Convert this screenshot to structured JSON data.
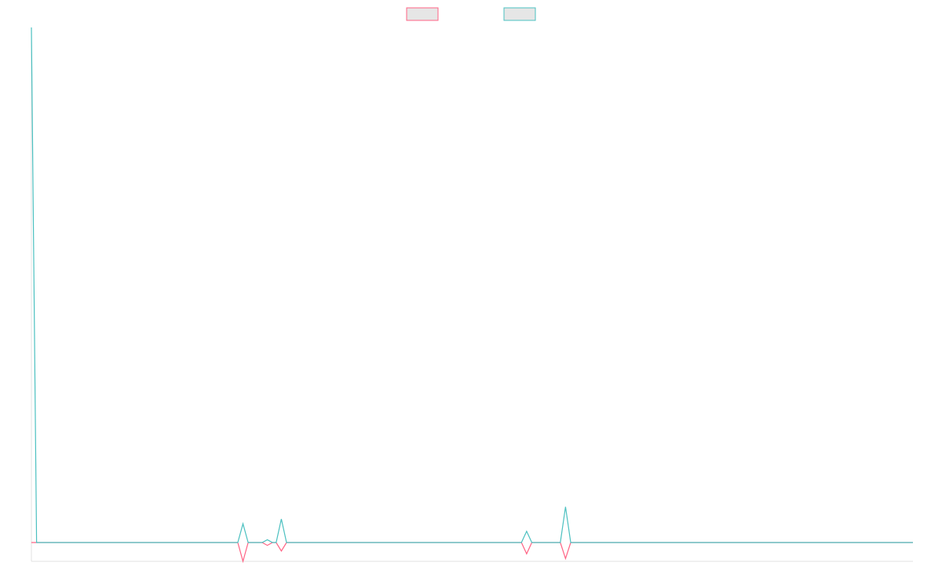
{
  "chart_data": {
    "type": "line",
    "x": [
      0,
      1,
      39.8,
      40.8,
      41.8,
      44.5,
      45.5,
      46.5,
      47.2,
      48.2,
      49.2,
      94.5,
      95.5,
      96.5,
      102,
      103,
      104,
      170
    ],
    "series": [
      {
        "color": "#ff6384",
        "values": [
          0,
          0,
          0,
          -1,
          0,
          0,
          -0.15,
          0,
          0,
          -0.45,
          0,
          0,
          -0.6,
          0,
          0,
          -0.85,
          0,
          0
        ]
      },
      {
        "color": "#4bc0c0",
        "values": [
          27.4,
          0,
          0,
          1,
          0,
          0,
          0.15,
          0,
          0,
          1.25,
          0,
          0,
          0.6,
          0,
          0,
          1.9,
          0,
          0
        ]
      }
    ],
    "xlim": [
      0,
      170
    ],
    "ylim": [
      -1,
      27.4
    ],
    "legend": "top"
  }
}
